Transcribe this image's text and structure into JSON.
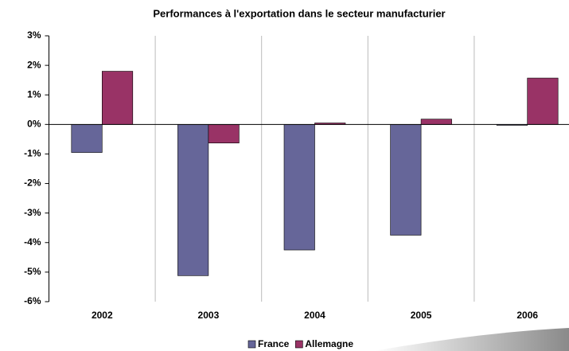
{
  "chart_data": {
    "type": "bar",
    "title": "Performances à l'exportation dans le secteur manufacturier",
    "categories": [
      "2002",
      "2003",
      "2004",
      "2005",
      "2006"
    ],
    "series": [
      {
        "name": "France",
        "color": "#666699",
        "values": [
          -0.95,
          -5.12,
          -4.25,
          -3.75,
          -0.03
        ]
      },
      {
        "name": "Allemagne",
        "color": "#993366",
        "values": [
          1.8,
          -0.63,
          0.05,
          0.18,
          1.57
        ]
      }
    ],
    "ylim": [
      -6,
      3
    ],
    "yticks": [
      {
        "value": 3,
        "label": "3%"
      },
      {
        "value": 2,
        "label": "2%"
      },
      {
        "value": 1,
        "label": "1%"
      },
      {
        "value": 0,
        "label": "0%"
      },
      {
        "value": -1,
        "label": "-1%"
      },
      {
        "value": -2,
        "label": "-2%"
      },
      {
        "value": -3,
        "label": "-3%"
      },
      {
        "value": -4,
        "label": "-4%"
      },
      {
        "value": -5,
        "label": "-5%"
      },
      {
        "value": -6,
        "label": "-6%"
      }
    ],
    "legend": "bottom"
  }
}
